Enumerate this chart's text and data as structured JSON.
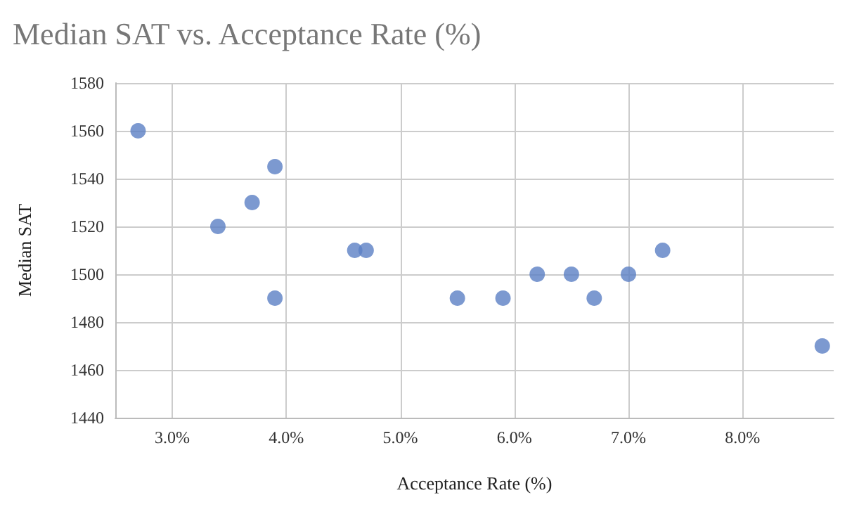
{
  "chart_data": {
    "type": "scatter",
    "title": "Median SAT vs. Acceptance Rate (%)",
    "xlabel": "Acceptance Rate (%)",
    "ylabel": "Median SAT",
    "x": [
      2.7,
      3.4,
      3.7,
      3.9,
      3.9,
      4.6,
      4.7,
      5.5,
      5.9,
      6.2,
      6.5,
      6.7,
      7.0,
      7.3,
      8.7
    ],
    "values": [
      1560,
      1520,
      1530,
      1545,
      1490,
      1510,
      1510,
      1490,
      1490,
      1500,
      1500,
      1490,
      1500,
      1510,
      1470
    ],
    "color": "#5b7fc4",
    "marker": "circle",
    "xlim": [
      2.5,
      8.8
    ],
    "xticks": [
      {
        "value": 3,
        "label": "3.0%"
      },
      {
        "value": 4,
        "label": "4.0%"
      },
      {
        "value": 5,
        "label": "5.0%"
      },
      {
        "value": 6,
        "label": "6.0%"
      },
      {
        "value": 7,
        "label": "7.0%"
      },
      {
        "value": 8,
        "label": "8.0%"
      }
    ],
    "ylim": [
      1440,
      1580
    ],
    "yticks": [
      1440,
      1460,
      1480,
      1500,
      1520,
      1540,
      1560,
      1580
    ],
    "grid": true
  }
}
